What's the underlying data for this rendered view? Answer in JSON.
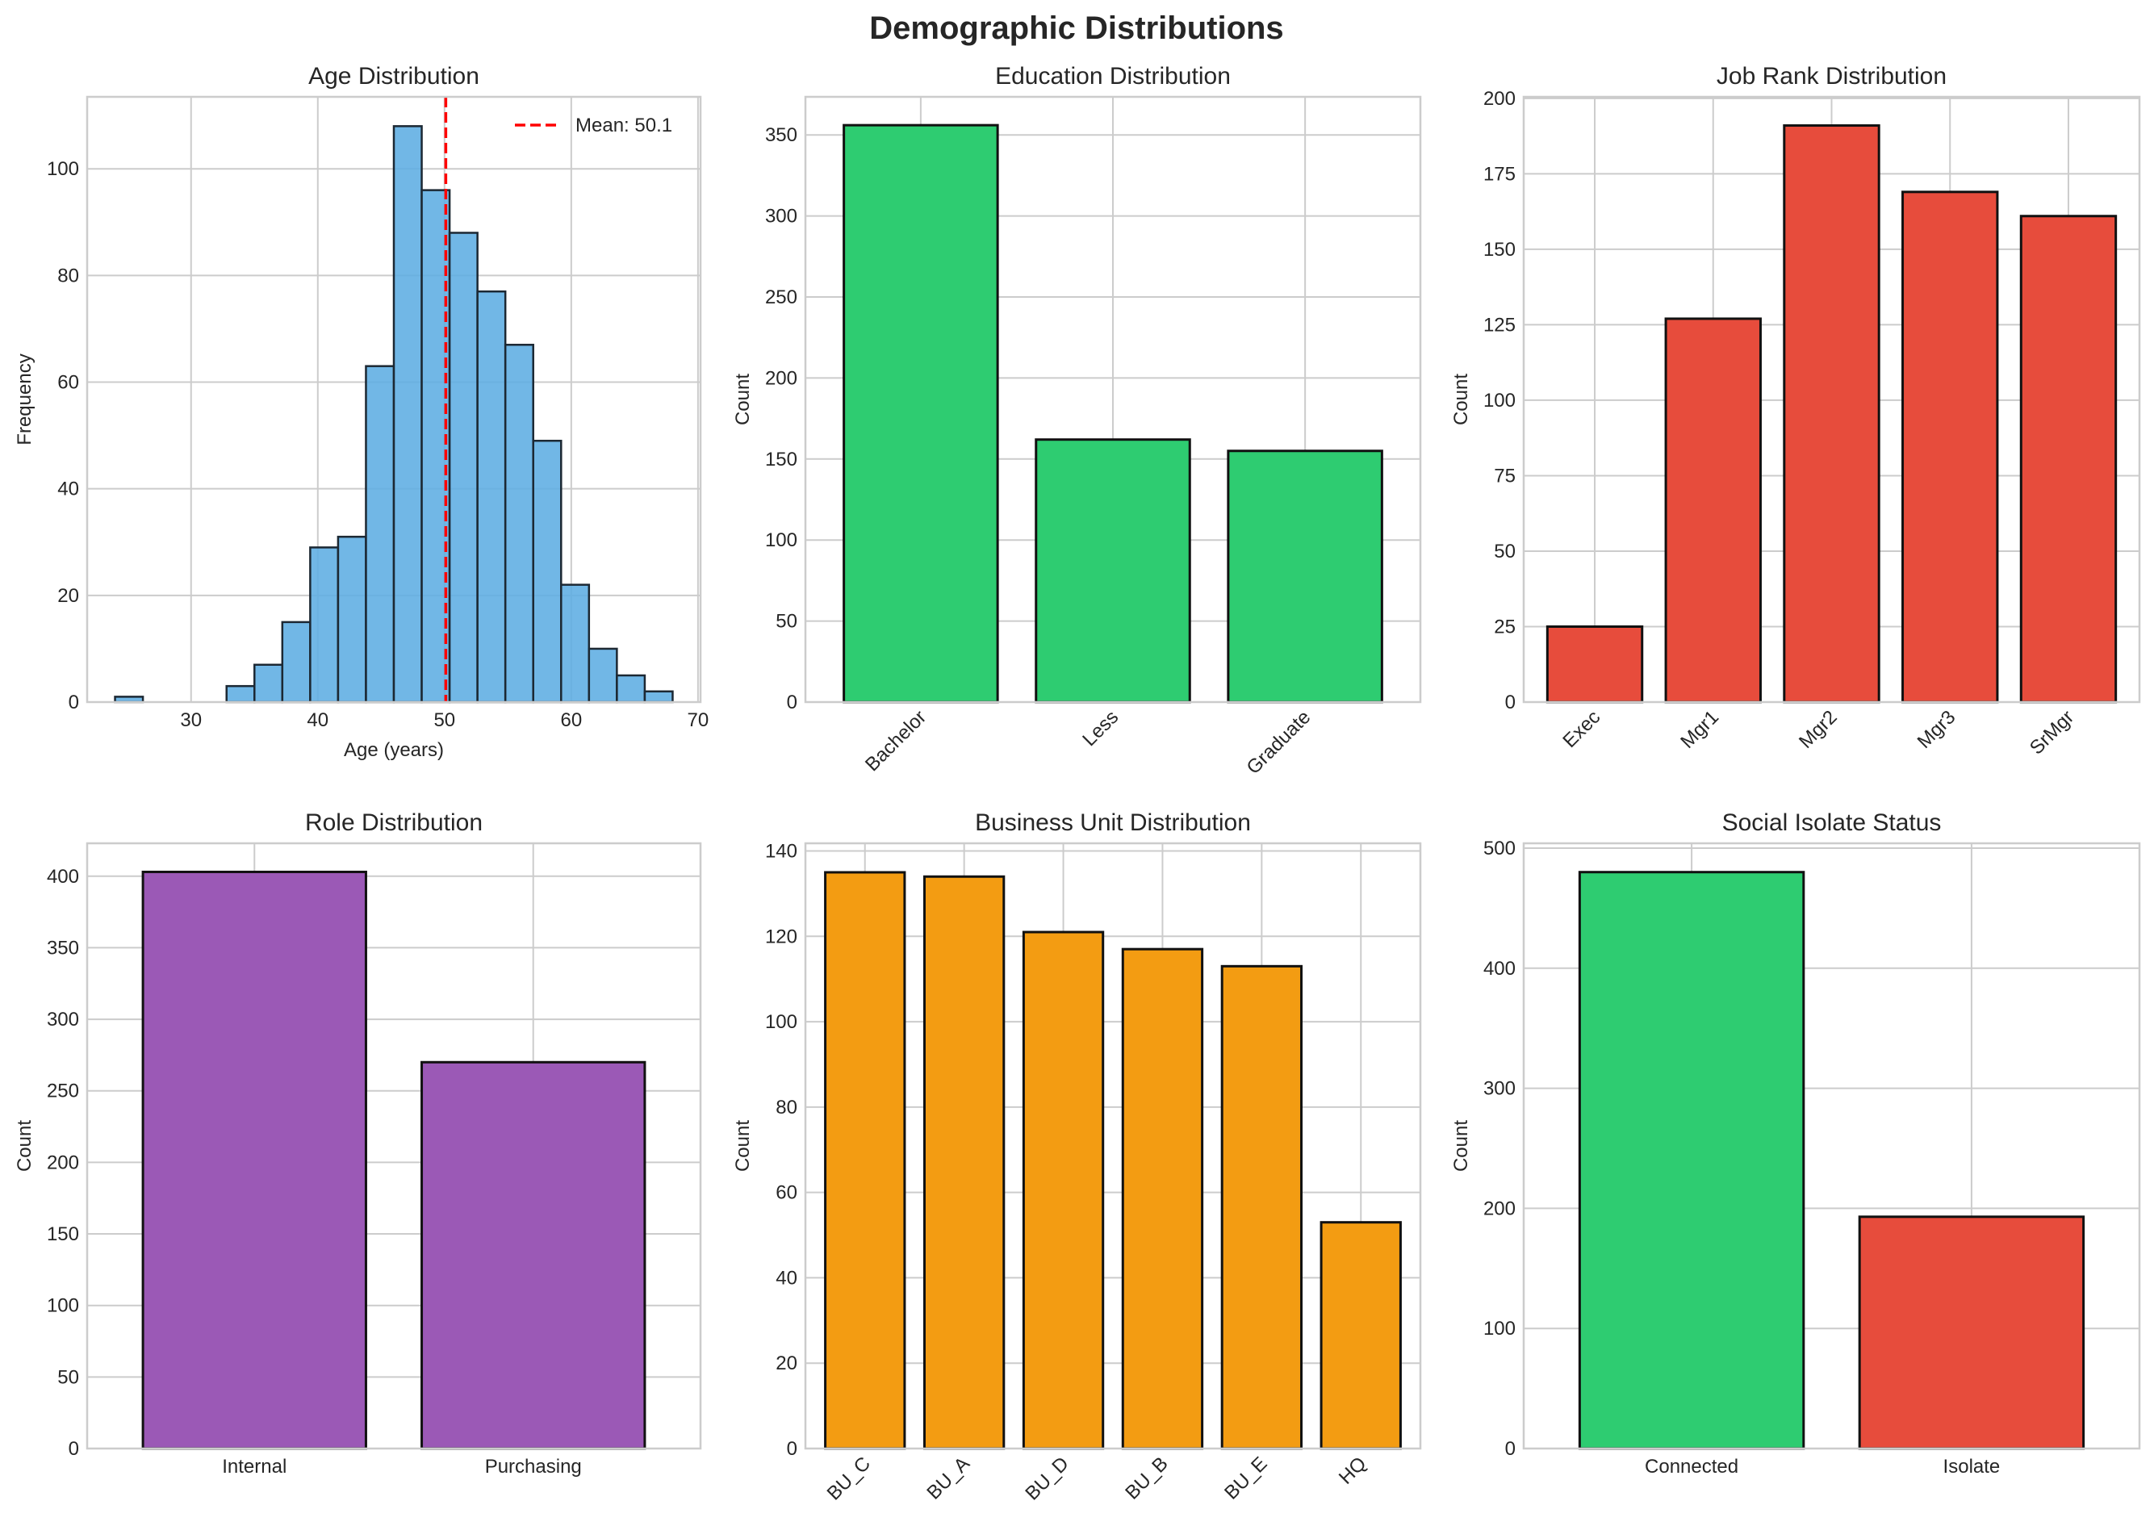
{
  "figure": {
    "suptitle": "Demographic Distributions"
  },
  "chart_data": [
    {
      "id": "age",
      "type": "histogram",
      "title": "Age Distribution",
      "xlabel": "Age (years)",
      "ylabel": "Frequency",
      "bin_start": 24.0,
      "bin_width": 2.2,
      "values": [
        1,
        0,
        0,
        0,
        3,
        7,
        15,
        29,
        31,
        63,
        108,
        96,
        88,
        77,
        67,
        49,
        22,
        10,
        5,
        2
      ],
      "xlim": [
        21.8,
        70.2
      ],
      "ylim": [
        0,
        113.5
      ],
      "xticks": [
        30,
        40,
        50,
        60,
        70
      ],
      "yticks": [
        0,
        20,
        40,
        60,
        80,
        100
      ],
      "color": "#5dade2",
      "edge_color": "#1c2833",
      "mean_line": {
        "value": 50.1,
        "label": "Mean: 50.1",
        "color": "#ff0000",
        "style": "dashed"
      },
      "legend": {
        "placement": "top-right",
        "entries": [
          "Mean: 50.1"
        ]
      },
      "grid": true
    },
    {
      "id": "education",
      "type": "bar",
      "title": "Education Distribution",
      "xlabel": "",
      "ylabel": "Count",
      "categories": [
        "Bachelor",
        "Less",
        "Graduate"
      ],
      "values": [
        356,
        162,
        155
      ],
      "ylim": [
        0,
        373.5
      ],
      "yticks": [
        0,
        50,
        100,
        150,
        200,
        250,
        300,
        350
      ],
      "tick_rotation": 45,
      "color": "#2ecc71",
      "grid": true
    },
    {
      "id": "job_rank",
      "type": "bar",
      "title": "Job Rank Distribution",
      "xlabel": "",
      "ylabel": "Count",
      "categories": [
        "Exec",
        "Mgr1",
        "Mgr2",
        "Mgr3",
        "SrMgr"
      ],
      "values": [
        25,
        127,
        191,
        169,
        161
      ],
      "ylim": [
        0,
        200.5
      ],
      "yticks": [
        0,
        25,
        50,
        75,
        100,
        125,
        150,
        175,
        200
      ],
      "tick_rotation": 45,
      "color": "#e74c3c",
      "grid": true
    },
    {
      "id": "role",
      "type": "bar",
      "title": "Role Distribution",
      "xlabel": "",
      "ylabel": "Count",
      "categories": [
        "Internal",
        "Purchasing"
      ],
      "values": [
        403,
        270
      ],
      "ylim": [
        0,
        423
      ],
      "yticks": [
        0,
        50,
        100,
        150,
        200,
        250,
        300,
        350,
        400
      ],
      "tick_rotation": 0,
      "color": "#9b59b6",
      "grid": true
    },
    {
      "id": "business_unit",
      "type": "bar",
      "title": "Business Unit Distribution",
      "xlabel": "",
      "ylabel": "Count",
      "categories": [
        "BU_C",
        "BU_A",
        "BU_D",
        "BU_B",
        "BU_E",
        "HQ"
      ],
      "values": [
        135,
        134,
        121,
        117,
        113,
        53
      ],
      "ylim": [
        0,
        141.8
      ],
      "yticks": [
        0,
        20,
        40,
        60,
        80,
        100,
        120,
        140
      ],
      "tick_rotation": 45,
      "color": "#f39c12",
      "grid": true
    },
    {
      "id": "social_isolate",
      "type": "bar",
      "title": "Social Isolate Status",
      "xlabel": "",
      "ylabel": "Count",
      "categories": [
        "Connected",
        "Isolate"
      ],
      "values": [
        480,
        193
      ],
      "ylim": [
        0,
        504
      ],
      "yticks": [
        0,
        100,
        200,
        300,
        400,
        500
      ],
      "tick_rotation": 0,
      "colors": [
        "#2ecc71",
        "#e74c3c"
      ],
      "grid": true
    }
  ]
}
